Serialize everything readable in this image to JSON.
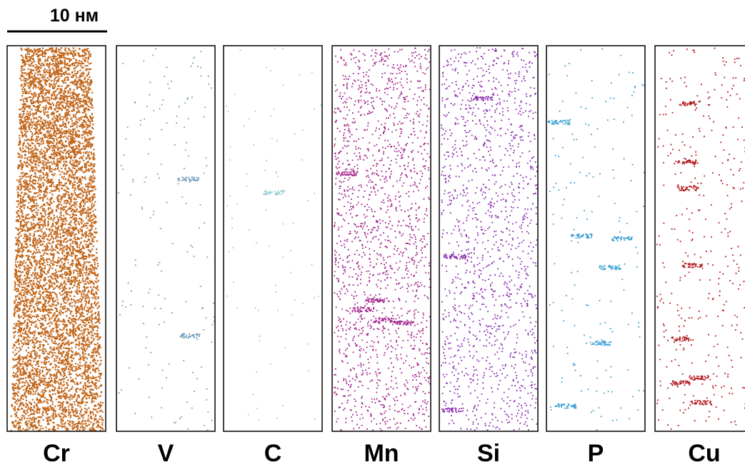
{
  "scale_bar": {
    "label": "10 нм"
  },
  "panels": [
    {
      "label": "Cr",
      "color": "#c2661a"
    },
    {
      "label": "V",
      "color": "#4f86a8"
    },
    {
      "label": "C",
      "color": "#7cc4c4"
    },
    {
      "label": "Mn",
      "color": "#a3238c"
    },
    {
      "label": "Si",
      "color": "#8b2cb0"
    },
    {
      "label": "P",
      "color": "#3a9fd2"
    },
    {
      "label": "Cu",
      "color": "#b3161a"
    }
  ]
}
